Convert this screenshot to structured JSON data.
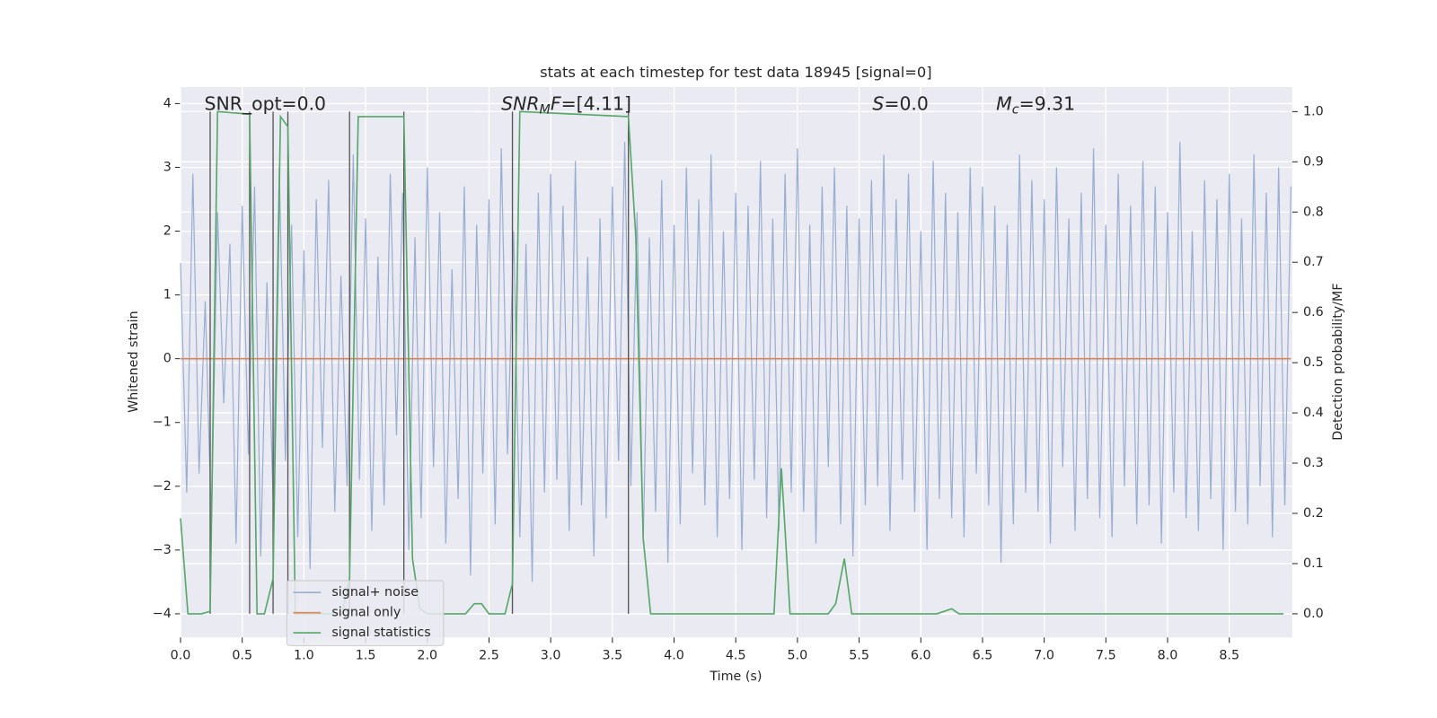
{
  "chart_data": {
    "type": "line",
    "title": "stats at each timestep for test data 18945 [signal=0]",
    "xlabel": "Time (s)",
    "ylabel": "Whitened strain",
    "y2label": "Detection probability/MF",
    "xlim": [
      0,
      9.01
    ],
    "ylim": [
      -4.37,
      4.26
    ],
    "y2lim": [
      -0.047,
      1.049
    ],
    "xticks": [
      {
        "value": 0,
        "label": "0.0"
      },
      {
        "value": 0.5,
        "label": "0.5"
      },
      {
        "value": 1,
        "label": "1.0"
      },
      {
        "value": 1.5,
        "label": "1.5"
      },
      {
        "value": 2,
        "label": "2.0"
      },
      {
        "value": 2.5,
        "label": "2.5"
      },
      {
        "value": 3,
        "label": "3.0"
      },
      {
        "value": 3.5,
        "label": "3.5"
      },
      {
        "value": 4,
        "label": "4.0"
      },
      {
        "value": 4.5,
        "label": "4.5"
      },
      {
        "value": 5,
        "label": "5.0"
      },
      {
        "value": 5.5,
        "label": "5.5"
      },
      {
        "value": 6,
        "label": "6.0"
      },
      {
        "value": 6.5,
        "label": "6.5"
      },
      {
        "value": 7,
        "label": "7.0"
      },
      {
        "value": 7.5,
        "label": "7.5"
      },
      {
        "value": 8,
        "label": "8.0"
      },
      {
        "value": 8.5,
        "label": "8.5"
      }
    ],
    "yticks": [
      {
        "value": -4,
        "label": "−4"
      },
      {
        "value": -3,
        "label": "−3"
      },
      {
        "value": -2,
        "label": "−2"
      },
      {
        "value": -1,
        "label": "−1"
      },
      0,
      1,
      2,
      3,
      4
    ],
    "y2ticks": [
      {
        "value": 0,
        "label": "0.0"
      },
      {
        "value": 0.1,
        "label": "0.1"
      },
      {
        "value": 0.2,
        "label": "0.2"
      },
      {
        "value": 0.3,
        "label": "0.3"
      },
      {
        "value": 0.4,
        "label": "0.4"
      },
      {
        "value": 0.5,
        "label": "0.5"
      },
      {
        "value": 0.6,
        "label": "0.6"
      },
      {
        "value": 0.7,
        "label": "0.7"
      },
      {
        "value": 0.8,
        "label": "0.8"
      },
      {
        "value": 0.9,
        "label": "0.9"
      },
      {
        "value": 1,
        "label": "1.0"
      }
    ],
    "grid": true,
    "legend": "best",
    "annotations": [
      {
        "parts": [
          {
            "text": "SNR_opt=0.0"
          }
        ]
      },
      {
        "parts": [
          {
            "text": "SNR",
            "italic": true
          },
          {
            "text": "M",
            "italic": true,
            "sub": true
          },
          {
            "text": "F",
            "italic": true
          },
          {
            "text": "=[4.11]"
          }
        ]
      },
      {
        "parts": [
          {
            "text": "S",
            "italic": true
          },
          {
            "text": "=0.0"
          }
        ]
      },
      {
        "parts": [
          {
            "text": "M",
            "italic": true
          },
          {
            "text": "c",
            "italic": true,
            "sub": true
          },
          {
            "text": "=9.31"
          }
        ]
      }
    ],
    "series": [
      {
        "name": "signal+ noise",
        "color": "#9aaed2",
        "x": [
          0,
          0.05,
          0.1,
          0.15,
          0.2,
          0.25,
          0.3,
          0.35,
          0.4,
          0.45,
          0.5,
          0.55,
          0.6,
          0.65,
          0.7,
          0.75,
          0.8,
          0.85,
          0.9,
          0.95,
          1,
          1.05,
          1.1,
          1.15,
          1.2,
          1.25,
          1.3,
          1.35,
          1.4,
          1.45,
          1.5,
          1.55,
          1.6,
          1.65,
          1.7,
          1.75,
          1.8,
          1.85,
          1.9,
          1.95,
          2,
          2.05,
          2.1,
          2.15,
          2.2,
          2.25,
          2.3,
          2.35,
          2.4,
          2.45,
          2.5,
          2.55,
          2.6,
          2.65,
          2.7,
          2.75,
          2.8,
          2.85,
          2.9,
          2.95,
          3,
          3.05,
          3.1,
          3.15,
          3.2,
          3.25,
          3.3,
          3.35,
          3.4,
          3.45,
          3.5,
          3.55,
          3.6,
          3.65,
          3.7,
          3.75,
          3.8,
          3.85,
          3.9,
          3.95,
          4,
          4.05,
          4.1,
          4.15,
          4.2,
          4.25,
          4.3,
          4.35,
          4.4,
          4.45,
          4.5,
          4.55,
          4.6,
          4.65,
          4.7,
          4.75,
          4.8,
          4.85,
          4.9,
          4.95,
          5,
          5.05,
          5.1,
          5.15,
          5.2,
          5.25,
          5.3,
          5.35,
          5.4,
          5.45,
          5.5,
          5.55,
          5.6,
          5.65,
          5.7,
          5.75,
          5.8,
          5.85,
          5.9,
          5.95,
          6,
          6.05,
          6.1,
          6.15,
          6.2,
          6.25,
          6.3,
          6.35,
          6.4,
          6.45,
          6.5,
          6.55,
          6.6,
          6.65,
          6.7,
          6.75,
          6.8,
          6.85,
          6.9,
          6.95,
          7,
          7.05,
          7.1,
          7.15,
          7.2,
          7.25,
          7.3,
          7.35,
          7.4,
          7.45,
          7.5,
          7.55,
          7.6,
          7.65,
          7.7,
          7.75,
          7.8,
          7.85,
          7.9,
          7.95,
          8,
          8.05,
          8.1,
          8.15,
          8.2,
          8.25,
          8.3,
          8.35,
          8.4,
          8.45,
          8.5,
          8.55,
          8.6,
          8.65,
          8.7,
          8.75,
          8.8,
          8.85,
          8.9,
          8.95,
          9
        ],
        "values": [
          1.5,
          -2.1,
          2.9,
          -1.8,
          0.9,
          -2.6,
          2.3,
          -0.7,
          1.8,
          -2.9,
          2.4,
          -1.5,
          2.7,
          -3.1,
          1.2,
          -2.2,
          3.0,
          -1.6,
          2.1,
          -2.8,
          1.7,
          -3.3,
          2.5,
          -1.4,
          2.8,
          -2.4,
          1.3,
          -2.0,
          3.2,
          -1.9,
          2.2,
          -2.7,
          1.6,
          -2.3,
          2.9,
          -1.2,
          2.6,
          -3.0,
          1.9,
          -2.5,
          3.0,
          -1.7,
          2.3,
          -2.9,
          1.4,
          -2.2,
          2.7,
          -3.4,
          2.1,
          -1.8,
          2.5,
          -2.6,
          3.3,
          -1.5,
          2.0,
          -2.8,
          1.8,
          -3.5,
          2.6,
          -2.1,
          2.9,
          -1.9,
          2.4,
          -2.7,
          3.1,
          -2.3,
          1.6,
          -3.1,
          2.2,
          -2.5,
          2.7,
          -1.6,
          3.4,
          -2.0,
          2.3,
          -2.9,
          1.9,
          -2.4,
          2.8,
          -3.2,
          2.1,
          -2.6,
          3.0,
          -1.8,
          2.5,
          -2.3,
          3.2,
          -2.8,
          2.0,
          -2.2,
          2.6,
          -3.0,
          2.4,
          -1.9,
          3.1,
          -2.5,
          2.2,
          -2.7,
          2.9,
          -2.1,
          3.3,
          -2.4,
          2.1,
          -2.9,
          2.7,
          -1.7,
          3.0,
          -2.6,
          2.4,
          -3.1,
          2.2,
          -2.3,
          2.8,
          -2.0,
          3.2,
          -2.7,
          2.5,
          -1.9,
          2.9,
          -2.4,
          2.0,
          -3.0,
          3.1,
          -2.2,
          2.6,
          -2.5,
          2.3,
          -2.8,
          3.0,
          -1.8,
          2.7,
          -2.3,
          2.4,
          -3.2,
          2.1,
          -2.6,
          3.2,
          -2.1,
          2.8,
          -2.4,
          2.5,
          -2.9,
          3.0,
          -1.7,
          2.2,
          -2.7,
          2.6,
          -2.2,
          3.3,
          -2.5,
          2.1,
          -2.8,
          2.9,
          -2.0,
          2.4,
          -2.6,
          3.1,
          -2.3,
          2.7,
          -2.9,
          2.3,
          -2.1,
          3.4,
          -2.5,
          2.0,
          -2.7,
          2.8,
          -2.2,
          2.5,
          -3.0,
          2.9,
          -2.4,
          2.2,
          -2.6,
          3.2,
          -2.0,
          2.6,
          -2.8,
          3.0,
          -2.3,
          2.7
        ]
      },
      {
        "name": "signal only",
        "color": "#dd8452",
        "x": [
          0,
          9
        ],
        "values": [
          0,
          0
        ]
      },
      {
        "name": "signal statistics",
        "color": "#55a868",
        "axis": "y2",
        "x": [
          0,
          0.06,
          0.17,
          0.24,
          0.3,
          0.56,
          0.62,
          0.68,
          0.75,
          0.81,
          0.87,
          0.93,
          1.31,
          1.37,
          1.44,
          1.81,
          1.88,
          1.94,
          2.0,
          2.06,
          2.31,
          2.38,
          2.44,
          2.5,
          2.63,
          2.69,
          2.75,
          3.63,
          3.69,
          3.75,
          3.81,
          4.81,
          4.87,
          4.94,
          5.25,
          5.31,
          5.38,
          5.44,
          6.13,
          6.25,
          6.31,
          8.94
        ],
        "values": [
          0.19,
          0,
          0,
          0.005,
          1,
          0.995,
          0,
          0,
          0.07,
          0.99,
          0.97,
          0,
          0,
          0.07,
          0.99,
          0.99,
          0.11,
          0.01,
          0,
          0,
          0,
          0.02,
          0.02,
          0,
          0,
          0.06,
          1,
          0.99,
          0.75,
          0.15,
          0,
          0,
          0.29,
          0,
          0,
          0.02,
          0.11,
          0,
          0,
          0.01,
          0,
          0
        ]
      }
    ],
    "vlines": {
      "axis": "y2",
      "color": "#555555",
      "ymin": 0,
      "ymax": 1,
      "x": [
        0.24,
        0.56,
        0.75,
        0.87,
        1.37,
        1.81,
        2.69,
        3.63
      ]
    }
  }
}
